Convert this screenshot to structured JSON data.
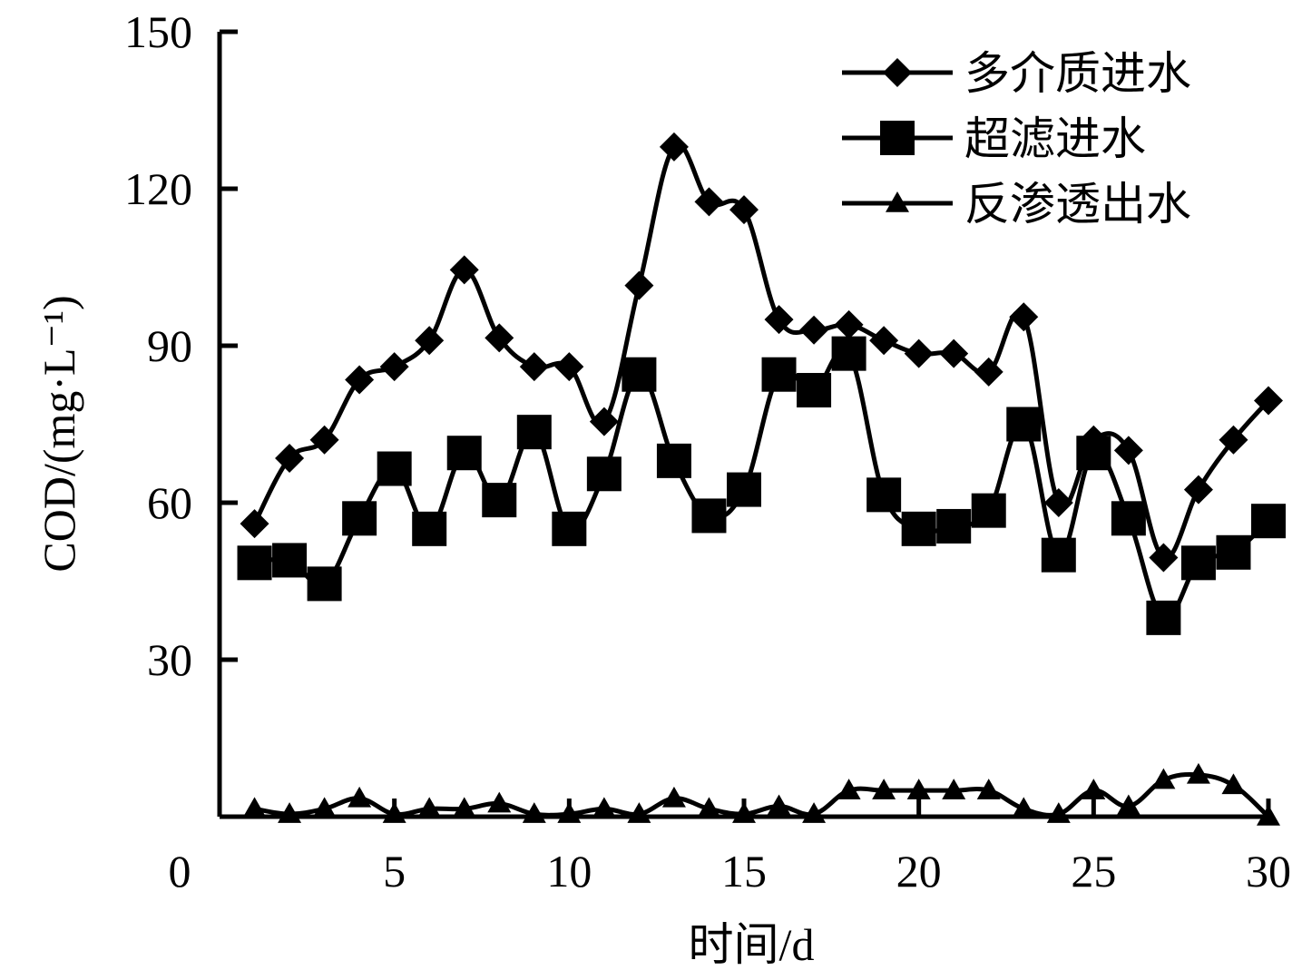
{
  "chart_data": {
    "type": "line",
    "title": "",
    "xlabel": "时间/d",
    "ylabel": "COD/(mg·L⁻¹)",
    "xlim": [
      0,
      30
    ],
    "ylim": [
      0,
      150
    ],
    "x_ticks": [
      0,
      5,
      10,
      15,
      20,
      25,
      30
    ],
    "y_ticks": [
      30,
      60,
      90,
      120,
      150
    ],
    "y_origin_label": "0",
    "grid": false,
    "legend_position": "top-right",
    "x": [
      1,
      2,
      3,
      4,
      5,
      6,
      7,
      8,
      9,
      10,
      11,
      12,
      13,
      14,
      15,
      16,
      17,
      18,
      19,
      20,
      21,
      22,
      23,
      24,
      25,
      26,
      27,
      28,
      29,
      30
    ],
    "series": [
      {
        "name": "多介质进水",
        "marker": "diamond",
        "values": [
          56,
          68.5,
          72,
          83.5,
          86,
          91,
          104.5,
          91.5,
          86,
          86,
          75.5,
          101.5,
          128,
          117.5,
          116,
          95,
          93,
          94,
          91,
          88.5,
          88.5,
          85,
          95.5,
          60,
          72,
          70,
          49.5,
          62.5,
          72,
          79.5
        ]
      },
      {
        "name": "超滤进水",
        "marker": "square",
        "values": [
          48.5,
          49,
          44.5,
          57,
          66.5,
          55,
          69.5,
          60.5,
          73.5,
          55,
          65.5,
          84.5,
          68,
          57.5,
          62.5,
          84.5,
          81.5,
          88.5,
          61.5,
          55,
          55.5,
          58.5,
          75,
          50,
          69.5,
          57,
          38,
          48.5,
          50.5,
          56.5
        ]
      },
      {
        "name": "反渗透出水",
        "marker": "triangle",
        "values": [
          1.5,
          0.5,
          1.5,
          3.5,
          0.5,
          1.5,
          1.5,
          2.5,
          0.5,
          0.5,
          1.5,
          0.5,
          3.5,
          1.5,
          0.5,
          2,
          0.5,
          5,
          5,
          5,
          5,
          5,
          1.5,
          0.5,
          5,
          2,
          7,
          8,
          6,
          0
        ]
      }
    ]
  },
  "style": {
    "line_color": "#000000",
    "background": "#ffffff"
  }
}
